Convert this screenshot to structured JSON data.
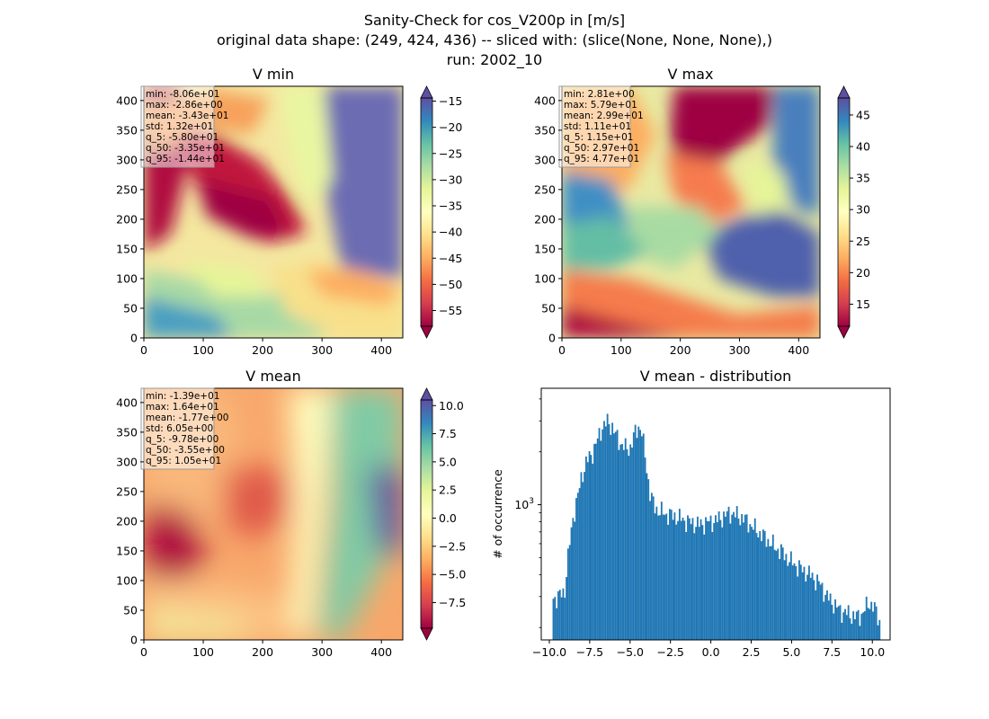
{
  "suptitle": {
    "line1": "Sanity-Check for cos_V200p in [m/s]",
    "line2": "original data shape: (249, 424, 436) -- sliced with: (slice(None, None, None),)",
    "line3": "run: 2002_10"
  },
  "colors": {
    "histogram_bar": "#1f77b4",
    "colormap": "Spectral",
    "colormap_stops": [
      "#9e0142",
      "#d53e4f",
      "#f46d43",
      "#fdae61",
      "#fee08b",
      "#ffffbf",
      "#e6f598",
      "#abdda4",
      "#66c2a5",
      "#3288bd",
      "#5e4fa2"
    ]
  },
  "chart_data": [
    {
      "type": "heatmap",
      "title": "V min",
      "x_ticks": [
        0,
        100,
        200,
        300,
        400
      ],
      "y_ticks": [
        0,
        50,
        100,
        150,
        200,
        250,
        300,
        350,
        400
      ],
      "xlim": [
        0,
        436
      ],
      "ylim": [
        0,
        424
      ],
      "colorbar": {
        "ticks": [
          -55,
          -50,
          -45,
          -40,
          -35,
          -30,
          -25,
          -20,
          -15
        ],
        "range": [
          -58,
          -14.4
        ],
        "extend": "both"
      },
      "stats_box": [
        "min: -8.06e+01",
        "max: -2.86e+00",
        "mean: -3.43e+01",
        "std: 1.32e+01",
        "q_5: -5.80e+01",
        "q_50: -3.35e+01",
        "q_95: -1.44e+01"
      ]
    },
    {
      "type": "heatmap",
      "title": "V max",
      "x_ticks": [
        0,
        100,
        200,
        300,
        400
      ],
      "y_ticks": [
        0,
        50,
        100,
        150,
        200,
        250,
        300,
        350,
        400
      ],
      "xlim": [
        0,
        436
      ],
      "ylim": [
        0,
        424
      ],
      "colorbar": {
        "ticks": [
          15,
          20,
          25,
          30,
          35,
          40,
          45
        ],
        "range": [
          11.5,
          47.7
        ],
        "extend": "both"
      },
      "stats_box": [
        "min: 2.81e+00",
        "max: 5.79e+01",
        "mean: 2.99e+01",
        "std: 1.11e+01",
        "q_5: 1.15e+01",
        "q_50: 2.97e+01",
        "q_95: 4.77e+01"
      ]
    },
    {
      "type": "heatmap",
      "title": "V mean",
      "x_ticks": [
        0,
        100,
        200,
        300,
        400
      ],
      "y_ticks": [
        0,
        50,
        100,
        150,
        200,
        250,
        300,
        350,
        400
      ],
      "xlim": [
        0,
        436
      ],
      "ylim": [
        0,
        424
      ],
      "colorbar": {
        "ticks": [
          -7.5,
          -5.0,
          -2.5,
          0.0,
          2.5,
          5.0,
          7.5,
          10.0
        ],
        "tick_labels": [
          "−7.5",
          "−5.0",
          "−2.5",
          "0.0",
          "2.5",
          "5.0",
          "7.5",
          "10.0"
        ],
        "range": [
          -9.78,
          10.5
        ],
        "extend": "both"
      },
      "stats_box": [
        "min: -1.39e+01",
        "max: 1.64e+01",
        "mean: -1.77e+00",
        "std: 6.05e+00",
        "q_5: -9.78e+00",
        "q_50: -3.55e+00",
        "q_95: 1.05e+01"
      ]
    },
    {
      "type": "bar",
      "title": "V mean - distribution",
      "ylabel": "# of occurrence",
      "y_scale": "log",
      "x_ticks": [
        -10.0,
        -7.5,
        -5.0,
        -2.5,
        0.0,
        2.5,
        5.0,
        7.5,
        10.0
      ],
      "x_tick_labels": [
        "−10.0",
        "−7.5",
        "−5.0",
        "−2.5",
        "0.0",
        "2.5",
        "5.0",
        "7.5",
        "10.0"
      ],
      "y_ticks": [
        1000
      ],
      "y_tick_labels": [
        {
          "base": "10",
          "exp": "3"
        }
      ],
      "xlim": [
        -10.5,
        11.1
      ],
      "ylim": [
        170,
        4600
      ],
      "bin_edges": [
        -9.8,
        10.5
      ],
      "bin_count": 200,
      "histogram_anchors_x": [
        -9.8,
        -9.5,
        -9.2,
        -9.05,
        -8.9,
        -8.7,
        -8.5,
        -8.2,
        -8.0,
        -7.7,
        -7.3,
        -7.0,
        -6.7,
        -6.4,
        -6.1,
        -5.9,
        -5.6,
        -5.3,
        -5.0,
        -4.7,
        -4.45,
        -4.3,
        -4.1,
        -3.9,
        -3.75,
        -3.5,
        -3.2,
        -2.7,
        -2.2,
        -1.7,
        -1.2,
        -0.7,
        -0.3,
        0.0,
        0.4,
        0.8,
        1.2,
        1.6,
        2.0,
        2.4,
        2.8,
        3.2,
        3.6,
        4.0,
        4.4,
        4.8,
        5.3,
        5.8,
        6.3,
        6.8,
        7.2,
        7.6,
        8.0,
        8.5,
        9.0,
        9.4,
        9.8,
        10.1,
        10.3,
        10.5
      ],
      "histogram_anchors_count": [
        290,
        300,
        310,
        320,
        450,
        640,
        880,
        1150,
        1450,
        1750,
        2000,
        2350,
        2800,
        2950,
        2800,
        2500,
        2250,
        2100,
        2100,
        2550,
        2800,
        2700,
        2000,
        1450,
        1150,
        980,
        920,
        880,
        860,
        820,
        790,
        770,
        790,
        800,
        820,
        860,
        900,
        870,
        840,
        780,
        720,
        670,
        620,
        570,
        540,
        490,
        450,
        420,
        390,
        350,
        300,
        275,
        250,
        240,
        230,
        240,
        280,
        260,
        240,
        210
      ]
    }
  ]
}
